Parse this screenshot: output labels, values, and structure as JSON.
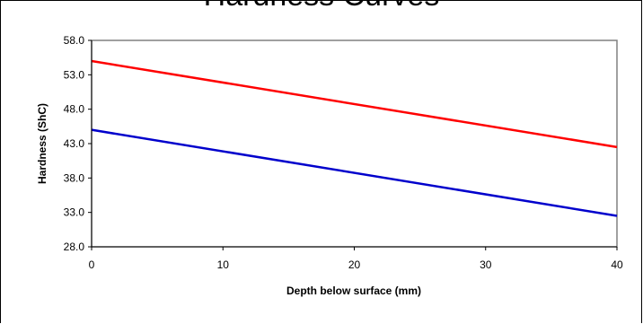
{
  "title_cutoff": "Hardness Curves",
  "chart_data": {
    "type": "line",
    "title": "Hardness Curves",
    "xlabel": "Depth below surface (mm)",
    "ylabel": "Hardness (ShC)",
    "xlim": [
      0,
      40
    ],
    "ylim": [
      28,
      58
    ],
    "x_ticks": [
      0,
      10,
      20,
      30,
      40
    ],
    "y_ticks": [
      "28.0",
      "33.0",
      "38.0",
      "43.0",
      "48.0",
      "53.0",
      "58.0"
    ],
    "grid": false,
    "series": [
      {
        "color": "#ff0000",
        "x": [
          0,
          40
        ],
        "y": [
          55.0,
          42.5
        ]
      },
      {
        "color": "#0000cc",
        "x": [
          0,
          40
        ],
        "y": [
          45.0,
          32.5
        ]
      }
    ]
  }
}
